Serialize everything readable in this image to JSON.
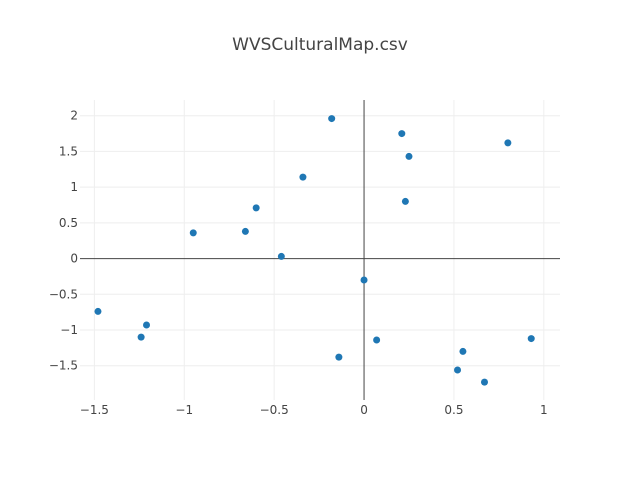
{
  "chart_data": {
    "type": "scatter",
    "title": "WVSCulturalMap.csv",
    "xlabel": "",
    "ylabel": "",
    "xlim": [
      -1.58,
      1.09
    ],
    "ylim": [
      -1.98,
      2.22
    ],
    "x_ticks": [
      -1.5,
      -1,
      -0.5,
      0,
      0.5,
      1
    ],
    "x_tick_labels": [
      "−1.5",
      "−1",
      "−0.5",
      "0",
      "0.5",
      "1"
    ],
    "y_ticks": [
      -1.5,
      -1,
      -0.5,
      0,
      0.5,
      1,
      1.5,
      2
    ],
    "y_tick_labels": [
      "−1.5",
      "−1",
      "−0.5",
      "0",
      "0.5",
      "1",
      "1.5",
      "2"
    ],
    "grid": true,
    "marker_color": "#1f77b4",
    "points": [
      {
        "x": -1.48,
        "y": -0.74
      },
      {
        "x": -1.24,
        "y": -1.1
      },
      {
        "x": -1.21,
        "y": -0.93
      },
      {
        "x": -0.95,
        "y": 0.36
      },
      {
        "x": -0.66,
        "y": 0.38
      },
      {
        "x": -0.6,
        "y": 0.71
      },
      {
        "x": -0.46,
        "y": 0.03
      },
      {
        "x": -0.34,
        "y": 1.14
      },
      {
        "x": -0.18,
        "y": 1.96
      },
      {
        "x": -0.14,
        "y": -1.38
      },
      {
        "x": 0.0,
        "y": -0.3
      },
      {
        "x": 0.07,
        "y": -1.14
      },
      {
        "x": 0.21,
        "y": 1.75
      },
      {
        "x": 0.23,
        "y": 0.8
      },
      {
        "x": 0.25,
        "y": 1.43
      },
      {
        "x": 0.52,
        "y": -1.56
      },
      {
        "x": 0.55,
        "y": -1.3
      },
      {
        "x": 0.67,
        "y": -1.73
      },
      {
        "x": 0.8,
        "y": 1.62
      },
      {
        "x": 0.93,
        "y": -1.12
      }
    ]
  }
}
